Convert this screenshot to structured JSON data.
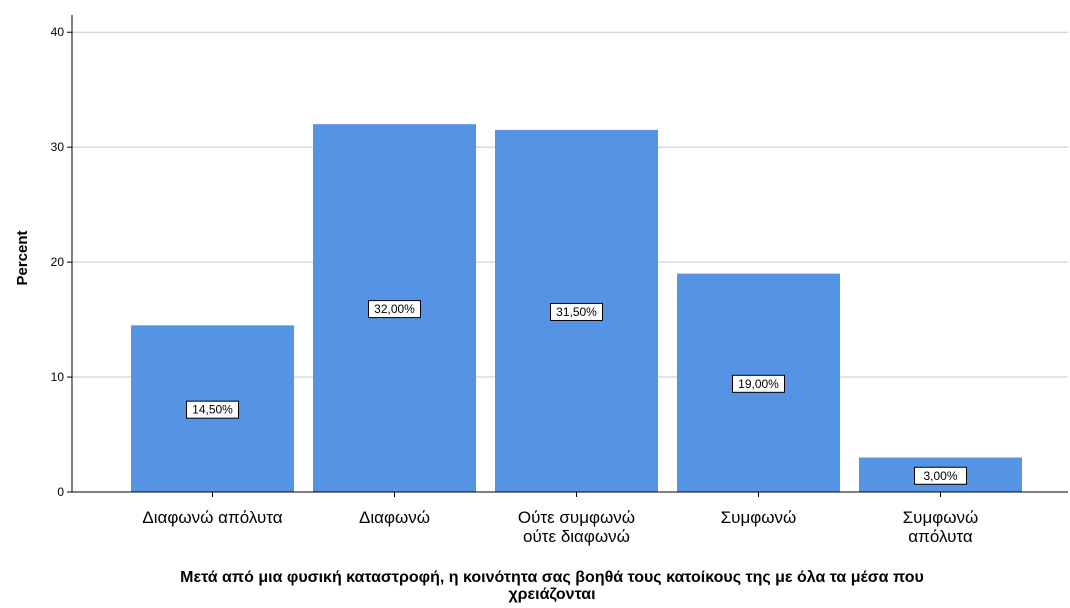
{
  "chart_data": {
    "type": "bar",
    "categories": [
      [
        "Διαφωνώ απόλυτα"
      ],
      [
        "Διαφωνώ"
      ],
      [
        "Ούτε συμφωνώ",
        "ούτε διαφωνώ"
      ],
      [
        "Συμφωνώ"
      ],
      [
        "Συμφωνώ",
        "απόλυτα"
      ]
    ],
    "values": [
      14.5,
      32.0,
      31.5,
      19.0,
      3.0
    ],
    "data_labels": [
      "14,50%",
      "32,00%",
      "31,50%",
      "19,00%",
      "3,00%"
    ],
    "ylabel": "Percent",
    "xlabel": [
      "Μετά από μια φυσική καταστροφή, η κοινότητα σας βοηθά τους κατοίκους της με όλα τα μέσα που",
      "χρειάζονται"
    ],
    "ylim": [
      0,
      41.5
    ],
    "yticks": [
      0,
      10,
      20,
      30,
      40
    ],
    "grid": true,
    "bar_color": "#5594e4"
  }
}
